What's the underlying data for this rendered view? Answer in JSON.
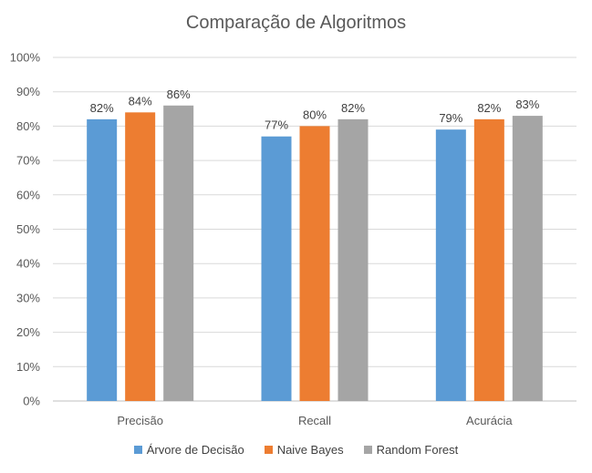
{
  "chart_data": {
    "type": "bar",
    "title": "Comparação de Algoritmos",
    "categories": [
      "Precisão",
      "Recall",
      "Acurácia"
    ],
    "series": [
      {
        "name": "Árvore de Decisão",
        "color": "#5B9BD5",
        "values": [
          82,
          77,
          79
        ],
        "labels": [
          "82%",
          "77%",
          "79%"
        ]
      },
      {
        "name": "Naive Bayes",
        "color": "#ED7D31",
        "values": [
          84,
          80,
          82
        ],
        "labels": [
          "84%",
          "80%",
          "82%"
        ]
      },
      {
        "name": "Random Forest",
        "color": "#A5A5A5",
        "values": [
          86,
          82,
          83
        ],
        "labels": [
          "86%",
          "82%",
          "83%"
        ]
      }
    ],
    "ylim": [
      0,
      100
    ],
    "yticks": [
      "0%",
      "10%",
      "20%",
      "30%",
      "40%",
      "50%",
      "60%",
      "70%",
      "80%",
      "90%",
      "100%"
    ],
    "grid": true,
    "legend_position": "bottom"
  }
}
